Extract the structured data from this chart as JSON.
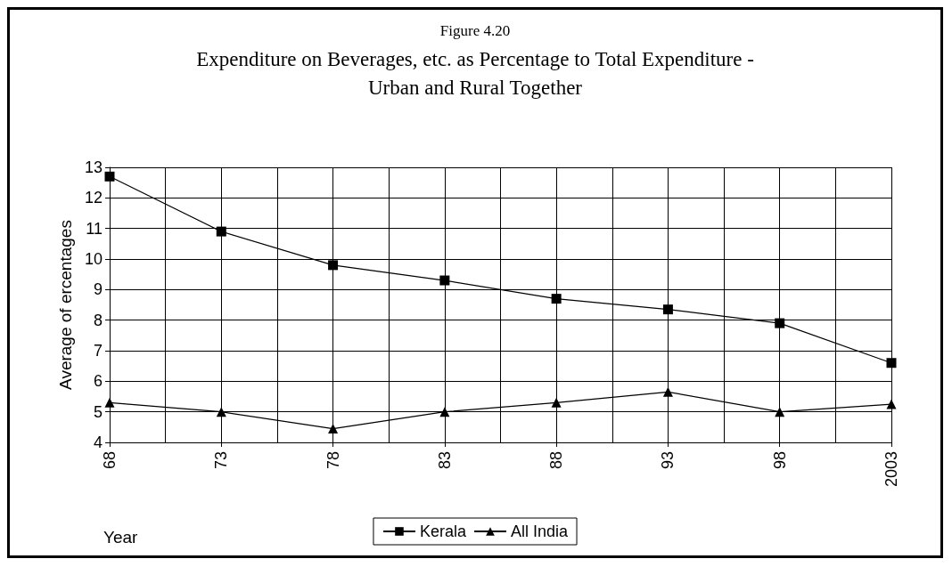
{
  "chart_data": {
    "type": "line",
    "title": "Figure 4.20",
    "subtitle": "Expenditure on Beverages, etc. as Percentage to Total Expenditure -\nUrban and Rural Together",
    "xlabel": "Year",
    "ylabel": "Average of ercentages",
    "categories": [
      "68",
      "73",
      "78",
      "83",
      "88",
      "93",
      "98",
      "2003"
    ],
    "series": [
      {
        "name": "Kerala",
        "color": "#000000",
        "marker": "square",
        "values": [
          12.7,
          10.9,
          9.8,
          9.3,
          8.7,
          8.35,
          7.9,
          6.6
        ]
      },
      {
        "name": "All India",
        "color": "#000000",
        "marker": "triangle",
        "values": [
          5.3,
          5.0,
          4.45,
          5.0,
          5.3,
          5.65,
          5.0,
          5.25
        ]
      }
    ],
    "ylim": [
      4,
      13
    ],
    "yticks": [
      4,
      5,
      6,
      7,
      8,
      9,
      10,
      11,
      12,
      13
    ],
    "grid": true,
    "legend": "bottom",
    "line_style": "solid"
  }
}
